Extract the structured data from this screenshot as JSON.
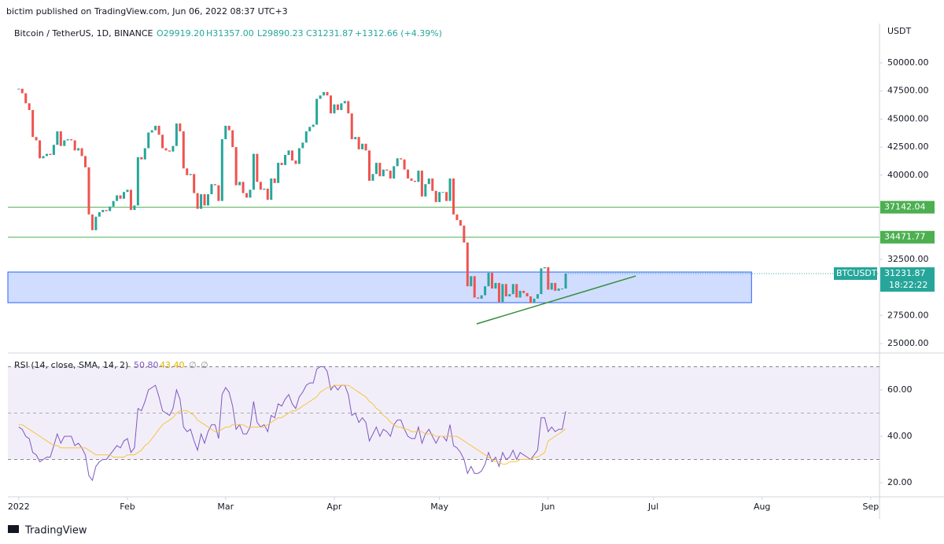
{
  "header": {
    "publisher": "bictim published on TradingView.com, Jun 06, 2022 08:37 UTC+3",
    "brand": "TradingView"
  },
  "chart_data": [
    {
      "type": "candlestick",
      "title": "Bitcoin / TetherUS, 1D, BINANCE",
      "open_label": "O29919.20",
      "high_label": "H31357.00",
      "low_label": "L29890.23",
      "close_label": "C31231.87",
      "change_label": "+1312.66 (+4.39%)",
      "axis_unit": "USDT",
      "up_color": "#26a69a",
      "down_color": "#ef5350",
      "xlim": [
        -3.1,
        245.5
      ],
      "xticks": [
        {
          "value": 0,
          "label": "2022"
        },
        {
          "value": 31,
          "label": "Feb"
        },
        {
          "value": 59,
          "label": "Mar"
        },
        {
          "value": 90,
          "label": "Apr"
        },
        {
          "value": 120,
          "label": "May"
        },
        {
          "value": 151,
          "label": "Jun"
        },
        {
          "value": 181,
          "label": "Jul"
        },
        {
          "value": 212,
          "label": "Aug"
        },
        {
          "value": 243,
          "label": "Sep"
        }
      ],
      "ylim": [
        24230,
        53500
      ],
      "yticks": [
        {
          "value": 25000,
          "label": "25000.00"
        },
        {
          "value": 27500,
          "label": "27500.00"
        },
        {
          "value": 32500,
          "label": "32500.00"
        },
        {
          "value": 40000,
          "label": "40000.00"
        },
        {
          "value": 42500,
          "label": "42500.00"
        },
        {
          "value": 45000,
          "label": "45000.00"
        },
        {
          "value": 47500,
          "label": "47500.00"
        },
        {
          "value": 50000,
          "label": "50000.00"
        }
      ],
      "values": [
        47700,
        47300,
        46400,
        45800,
        43400,
        43100,
        41500,
        41700,
        41900,
        41800,
        42700,
        43900,
        42600,
        43100,
        43200,
        43100,
        42200,
        42400,
        41700,
        40700,
        36500,
        35100,
        36300,
        36700,
        36900,
        36800,
        37200,
        37700,
        38200,
        37900,
        38500,
        38700,
        36900,
        37300,
        41600,
        41400,
        42400,
        43800,
        44000,
        44400,
        43600,
        42400,
        42200,
        42100,
        42600,
        44600,
        43900,
        40600,
        40000,
        40100,
        38400,
        37000,
        38300,
        37300,
        38300,
        39200,
        39100,
        37700,
        43200,
        44400,
        44000,
        42500,
        39100,
        39400,
        38400,
        37999,
        38700,
        41900,
        39400,
        38700,
        38800,
        37800,
        39700,
        39300,
        41100,
        40900,
        41800,
        42200,
        41300,
        41000,
        42400,
        42900,
        43900,
        44300,
        44500,
        46800,
        47100,
        47400,
        47100,
        45500,
        46300,
        45800,
        46400,
        46600,
        45500,
        43200,
        43400,
        42300,
        42800,
        42200,
        39500,
        40100,
        41100,
        39900,
        40500,
        40400,
        39700,
        40800,
        41500,
        41400,
        40500,
        39700,
        39500,
        39400,
        40400,
        38100,
        39200,
        39700,
        38600,
        37600,
        38500,
        38500,
        37700,
        39700,
        36500,
        36000,
        35500,
        34000,
        30100,
        31000,
        29100,
        29000,
        29300,
        30100,
        31300,
        29900,
        30400,
        28700,
        30300,
        29200,
        29400,
        30300,
        29100,
        29700,
        29500,
        29200,
        28600,
        29000,
        29400,
        31700,
        31800,
        29800,
        30400,
        29700,
        29900,
        29900,
        31231.87
      ],
      "levels": [
        {
          "value": 37142.04,
          "color": "#4caf50"
        },
        {
          "value": 34471.77,
          "color": "#4caf50"
        }
      ],
      "zone": {
        "top": 31370,
        "bottom": 28640,
        "x": [
          -3.1,
          209
        ],
        "color": "#2962ff"
      },
      "trendline": {
        "x": [
          130.6,
          176
        ],
        "values": [
          26750,
          31020
        ],
        "color": "#388e3c"
      },
      "last": {
        "value": 31231.87,
        "symbol": "BTCUSDT",
        "countdown": "18:22:22",
        "color": "#26a69a"
      }
    },
    {
      "type": "line",
      "title": "RSI (14, close, SMA, 14, 2)",
      "legend_values": [
        "50.80",
        "43.40",
        "∅",
        "∅"
      ],
      "ylim": [
        13.9,
        74.9
      ],
      "yticks": [
        {
          "value": 20,
          "label": "20.00"
        },
        {
          "value": 40,
          "label": "40.00"
        },
        {
          "value": 60,
          "label": "60.00"
        }
      ],
      "bands": [
        30,
        70
      ],
      "midline": 50,
      "band_color": "#7e57c2",
      "series": [
        {
          "color": "#7e57c2",
          "values": [
            44,
            43,
            40,
            39,
            33,
            32,
            29,
            30,
            31,
            31,
            36,
            41,
            37,
            40,
            40,
            40,
            36,
            37,
            35,
            32,
            23,
            21,
            27,
            29,
            30,
            30,
            32,
            34,
            36,
            35,
            38,
            39,
            33,
            35,
            52,
            51,
            55,
            60,
            61,
            62,
            57,
            51,
            50,
            49,
            52,
            60,
            56,
            44,
            42,
            43,
            38,
            34,
            41,
            37,
            42,
            45,
            45,
            39,
            58,
            61,
            59,
            53,
            43,
            45,
            41,
            41,
            44,
            55,
            46,
            44,
            45,
            42,
            49,
            48,
            54,
            53,
            56,
            58,
            54,
            52,
            57,
            59,
            62,
            63,
            63,
            69,
            70,
            70,
            68,
            60,
            62,
            60,
            62,
            62,
            58,
            49,
            50,
            46,
            48,
            46,
            38,
            41,
            44,
            40,
            43,
            42,
            40,
            45,
            47,
            47,
            43,
            40,
            39,
            39,
            44,
            37,
            41,
            43,
            40,
            37,
            40,
            40,
            38,
            45,
            36,
            35,
            33,
            30,
            24,
            27,
            24,
            24,
            25,
            28,
            33,
            29,
            31,
            27,
            33,
            30,
            31,
            34,
            30,
            33,
            32,
            31,
            30,
            32,
            34,
            48,
            48,
            42,
            44,
            42,
            43,
            43,
            50.8
          ]
        },
        {
          "color": "#f5c542",
          "values": [
            45,
            45,
            44,
            43,
            42,
            41,
            40,
            39,
            38,
            37,
            36,
            36,
            35,
            35,
            35,
            35,
            35,
            35,
            35,
            35,
            34,
            33,
            32,
            32,
            32,
            32,
            32,
            31,
            31,
            31,
            31,
            32,
            32,
            32,
            33,
            34,
            36,
            37,
            39,
            41,
            43,
            45,
            46,
            47,
            48,
            50,
            51,
            51,
            51,
            50,
            49,
            47,
            46,
            45,
            44,
            43,
            42,
            42,
            43,
            44,
            44,
            45,
            45,
            45,
            45,
            44,
            44,
            44,
            44,
            44,
            44,
            45,
            46,
            47,
            48,
            48,
            49,
            50,
            51,
            51,
            52,
            53,
            54,
            55,
            56,
            57,
            59,
            60,
            61,
            61,
            62,
            62,
            62,
            62,
            62,
            61,
            60,
            59,
            58,
            57,
            55,
            54,
            52,
            51,
            49,
            48,
            46,
            45,
            44,
            44,
            43,
            43,
            42,
            42,
            42,
            42,
            41,
            41,
            41,
            40,
            40,
            40,
            40,
            40,
            40,
            40,
            39,
            38,
            37,
            36,
            35,
            34,
            33,
            32,
            31,
            30,
            29,
            29,
            28,
            28,
            29,
            29,
            29,
            30,
            30,
            30,
            30,
            31,
            31,
            32,
            33,
            38,
            39,
            40,
            41,
            42,
            43.4
          ]
        }
      ]
    }
  ]
}
